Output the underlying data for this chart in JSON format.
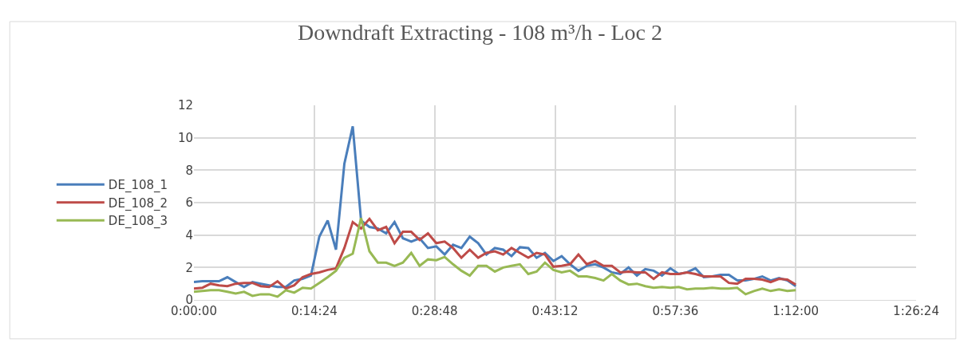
{
  "chart_data": {
    "type": "line",
    "title": "Downdraft Extracting - 108 m³/h - Loc 2",
    "x": [
      0,
      0.0167,
      0.0333,
      0.05,
      0.0667,
      0.0833,
      0.1,
      0.1167,
      0.1333,
      0.15,
      0.1667,
      0.1833,
      0.2,
      0.2167,
      0.2333,
      0.25,
      0.2667,
      0.2833,
      0.3,
      0.3167,
      0.3333,
      0.35,
      0.3667,
      0.3833,
      0.4,
      0.4167,
      0.4333,
      0.45,
      0.4667,
      0.4833,
      0.5,
      0.5167,
      0.5333,
      0.55,
      0.5667,
      0.5833,
      0.6,
      0.6167,
      0.6333,
      0.65,
      0.6667,
      0.6833,
      0.7,
      0.7167,
      0.7333,
      0.75,
      0.7667,
      0.7833,
      0.8,
      0.8167,
      0.8333,
      0.85,
      0.8667,
      0.8833,
      0.9,
      0.9167,
      0.9333,
      0.95,
      0.9667,
      0.9833,
      1,
      1.0167,
      1.0333,
      1.05,
      1.0667,
      1.0833,
      1.1,
      1.1167,
      1.1333,
      1.15,
      1.1667,
      1.1833,
      1.2
    ],
    "series": [
      {
        "name": "DE_108_1",
        "color": "#4a7ebb",
        "values": [
          1.1,
          1.15,
          1.15,
          1.15,
          1.4,
          1.1,
          0.8,
          1.1,
          1.0,
          0.9,
          0.8,
          0.8,
          1.2,
          1.3,
          1.5,
          3.9,
          4.9,
          3.1,
          8.4,
          10.7,
          4.9,
          4.5,
          4.4,
          4.1,
          4.8,
          3.8,
          3.6,
          3.8,
          3.2,
          3.3,
          2.8,
          3.4,
          3.2,
          3.9,
          3.5,
          2.8,
          3.2,
          3.1,
          2.7,
          3.25,
          3.2,
          2.6,
          2.9,
          2.4,
          2.7,
          2.2,
          1.8,
          2.1,
          2.2,
          2.0,
          1.7,
          1.6,
          2.0,
          1.5,
          1.9,
          1.8,
          1.5,
          1.95,
          1.6,
          1.7,
          1.95,
          1.4,
          1.45,
          1.55,
          1.55,
          1.2,
          1.2,
          1.3,
          1.45,
          1.2,
          1.35,
          1.2,
          0.85
        ]
      },
      {
        "name": "DE_108_2",
        "color": "#be4b48",
        "values": [
          0.7,
          0.75,
          1.0,
          0.9,
          0.85,
          1.0,
          1.05,
          1.05,
          0.85,
          0.8,
          1.15,
          0.7,
          0.9,
          1.4,
          1.6,
          1.7,
          1.85,
          1.95,
          3.2,
          4.8,
          4.4,
          5.0,
          4.3,
          4.5,
          3.5,
          4.2,
          4.2,
          3.7,
          4.1,
          3.5,
          3.6,
          3.2,
          2.6,
          3.1,
          2.6,
          2.9,
          3.0,
          2.8,
          3.2,
          2.9,
          2.6,
          2.9,
          2.8,
          2.05,
          2.1,
          2.2,
          2.8,
          2.2,
          2.4,
          2.1,
          2.1,
          1.7,
          1.75,
          1.7,
          1.7,
          1.3,
          1.7,
          1.6,
          1.6,
          1.7,
          1.6,
          1.45,
          1.45,
          1.45,
          1.05,
          1.0,
          1.3,
          1.3,
          1.25,
          1.1,
          1.3,
          1.25,
          0.95
        ]
      },
      {
        "name": "DE_108_3",
        "color": "#98b954",
        "values": [
          0.5,
          0.55,
          0.6,
          0.6,
          0.5,
          0.4,
          0.5,
          0.25,
          0.35,
          0.35,
          0.2,
          0.6,
          0.45,
          0.75,
          0.7,
          1.05,
          1.4,
          1.8,
          2.6,
          2.85,
          5.05,
          3.0,
          2.3,
          2.3,
          2.1,
          2.3,
          2.9,
          2.1,
          2.5,
          2.45,
          2.65,
          2.2,
          1.8,
          1.5,
          2.1,
          2.1,
          1.75,
          2.0,
          2.1,
          2.2,
          1.6,
          1.75,
          2.3,
          1.85,
          1.7,
          1.8,
          1.45,
          1.45,
          1.35,
          1.2,
          1.6,
          1.2,
          0.95,
          1.0,
          0.85,
          0.75,
          0.8,
          0.75,
          0.8,
          0.65,
          0.7,
          0.7,
          0.75,
          0.7,
          0.7,
          0.75,
          0.35,
          0.55,
          0.7,
          0.55,
          0.65,
          0.55,
          0.6
        ]
      }
    ],
    "xlim": [
      0,
      1.44
    ],
    "xticks": [
      {
        "value": 0,
        "label": "0:00:00"
      },
      {
        "value": 0.24,
        "label": "0:14:24"
      },
      {
        "value": 0.48,
        "label": "0:28:48"
      },
      {
        "value": 0.72,
        "label": "0:43:12"
      },
      {
        "value": 0.96,
        "label": "0:57:36"
      },
      {
        "value": 1.2,
        "label": "1:12:00"
      },
      {
        "value": 1.44,
        "label": "1:26:24"
      }
    ],
    "ylim": [
      0,
      12
    ],
    "yticks": [
      0,
      2,
      4,
      6,
      8,
      10,
      12
    ],
    "grid": true,
    "legend": "left",
    "marker": "none",
    "line_style": "solid"
  }
}
